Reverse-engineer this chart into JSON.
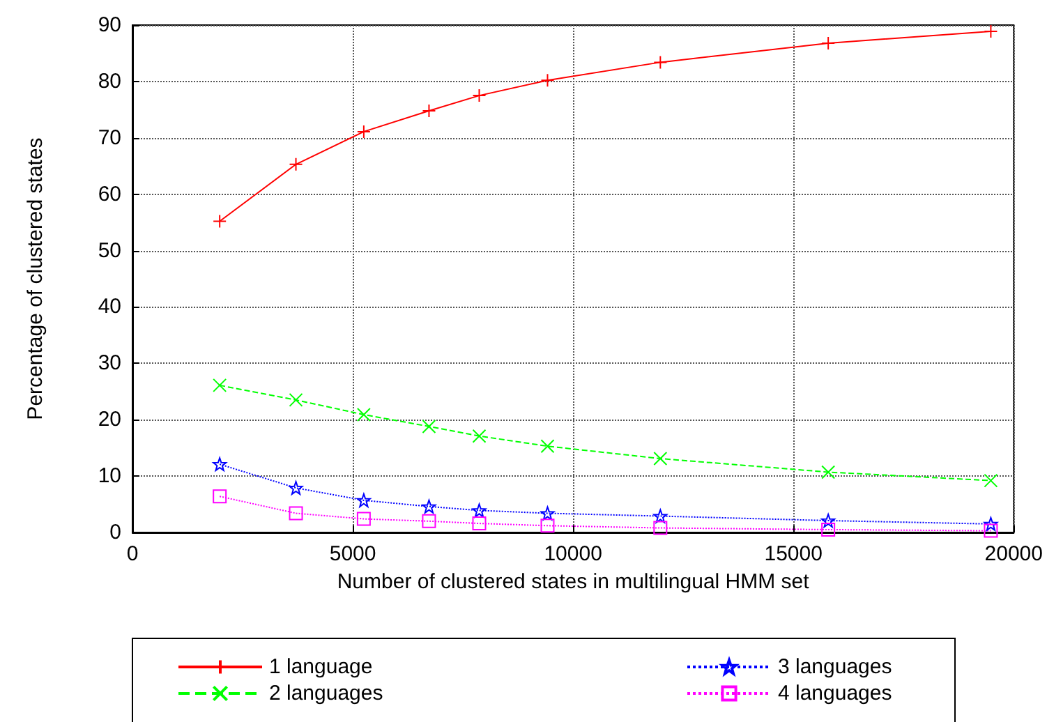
{
  "chart_data": {
    "type": "line",
    "xlabel": "Number of clustered states in multilingual HMM set",
    "ylabel": "Percentage of clustered states",
    "x": [
      1980,
      3710,
      5250,
      6730,
      7870,
      9420,
      11980,
      15790,
      19480
    ],
    "series": [
      {
        "name": "1 language",
        "color": "#ff0000",
        "marker": "plus",
        "line_style": "solid",
        "values": [
          55.2,
          65.3,
          71.1,
          74.8,
          77.5,
          80.2,
          83.4,
          86.8,
          88.9
        ]
      },
      {
        "name": "2 languages",
        "color": "#00ff00",
        "marker": "cross",
        "line_style": "dashed",
        "values": [
          26.1,
          23.5,
          20.9,
          18.8,
          17.1,
          15.3,
          13.1,
          10.7,
          9.2
        ]
      },
      {
        "name": "3 languages",
        "color": "#0000ff",
        "marker": "star",
        "line_style": "dotted",
        "values": [
          12.1,
          7.9,
          5.7,
          4.6,
          3.9,
          3.4,
          2.9,
          2.1,
          1.5
        ]
      },
      {
        "name": "4 languages",
        "color": "#ff00ff",
        "marker": "square",
        "line_style": "dotted",
        "values": [
          6.4,
          3.4,
          2.4,
          2.0,
          1.6,
          1.2,
          0.8,
          0.5,
          0.3
        ]
      }
    ],
    "xlim": [
      0,
      20000
    ],
    "xticks": [
      0,
      5000,
      10000,
      15000,
      20000
    ],
    "ylim": [
      0,
      90
    ],
    "yticks": [
      0,
      10,
      20,
      30,
      40,
      50,
      60,
      70,
      80,
      90
    ],
    "grid": true,
    "legend": "bottom"
  }
}
